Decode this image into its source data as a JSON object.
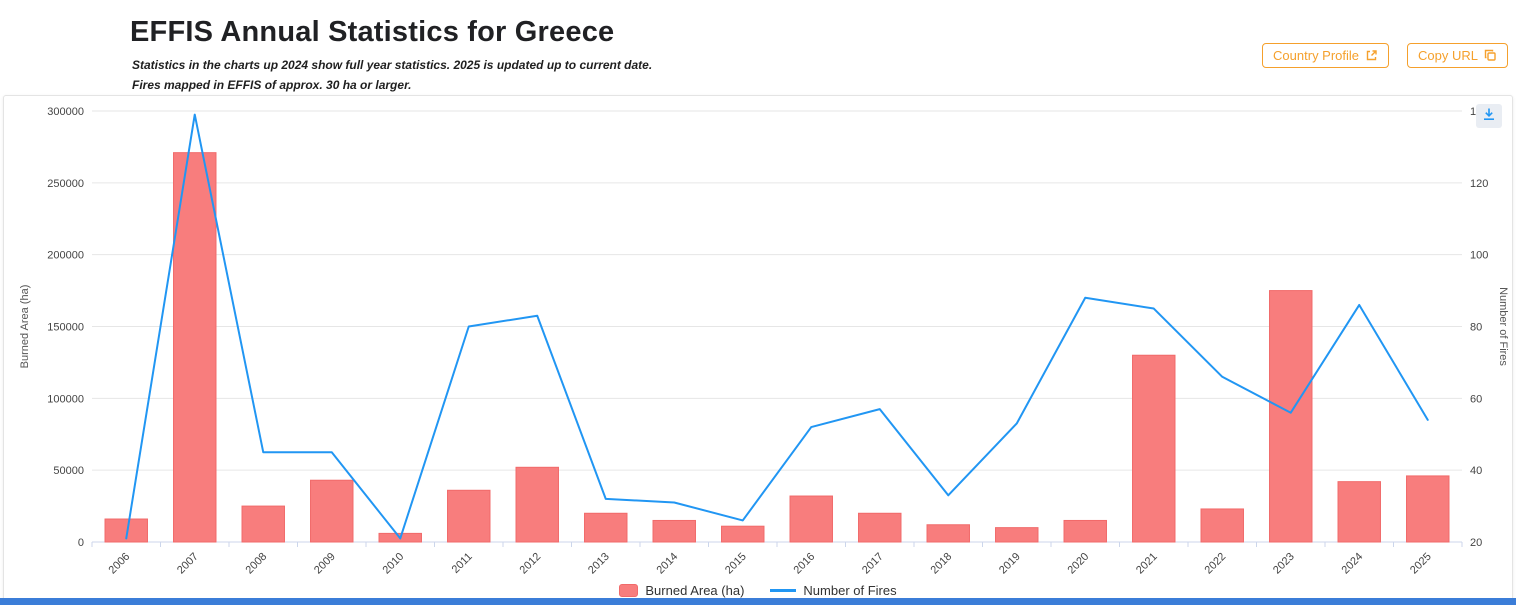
{
  "header": {
    "title": "EFFIS Annual Statistics for Greece",
    "subtitle_line1": "Statistics in the charts up 2024 show full year statistics. 2025 is updated up to current date.",
    "subtitle_line2": "Fires mapped in EFFIS of approx. 30 ha or larger.",
    "buttons": {
      "country_profile": "Country Profile",
      "copy_url": "Copy URL"
    }
  },
  "colors": {
    "accent": "#f5a02c",
    "bar_fill": "#f87d7d",
    "bar_border": "#f16a6a",
    "line": "#2196f3",
    "download_icon": "#2196f3",
    "footer_bar": "#3b7dd8",
    "grid": "#e6e6e6",
    "axis_line": "#ccd6eb"
  },
  "chart_data": {
    "type": "bar",
    "subtype": "column+line combo",
    "categories": [
      "2006",
      "2007",
      "2008",
      "2009",
      "2010",
      "2011",
      "2012",
      "2013",
      "2014",
      "2015",
      "2016",
      "2017",
      "2018",
      "2019",
      "2020",
      "2021",
      "2022",
      "2023",
      "2024",
      "2025"
    ],
    "series": [
      {
        "name": "Burned Area (ha)",
        "type": "bar",
        "axis": "left",
        "color": "#f87d7d",
        "values": [
          16000,
          271000,
          25000,
          43000,
          6000,
          36000,
          52000,
          20000,
          15000,
          11000,
          32000,
          20000,
          12000,
          10000,
          15000,
          130000,
          23000,
          175000,
          42000,
          46000
        ]
      },
      {
        "name": "Number of Fires",
        "type": "line",
        "axis": "right",
        "color": "#2196f3",
        "values": [
          21,
          139,
          45,
          45,
          21,
          80,
          83,
          32,
          31,
          26,
          52,
          57,
          33,
          53,
          88,
          85,
          66,
          56,
          86,
          54
        ]
      }
    ],
    "left_axis": {
      "title": "Burned Area (ha)",
      "min": 0,
      "max": 300000,
      "tick": 50000
    },
    "right_axis": {
      "title": "Number of Fires",
      "min": 20,
      "max": 140,
      "tick": 20
    },
    "grid": true,
    "legend_position": "bottom",
    "x_label_rotation": -45
  }
}
